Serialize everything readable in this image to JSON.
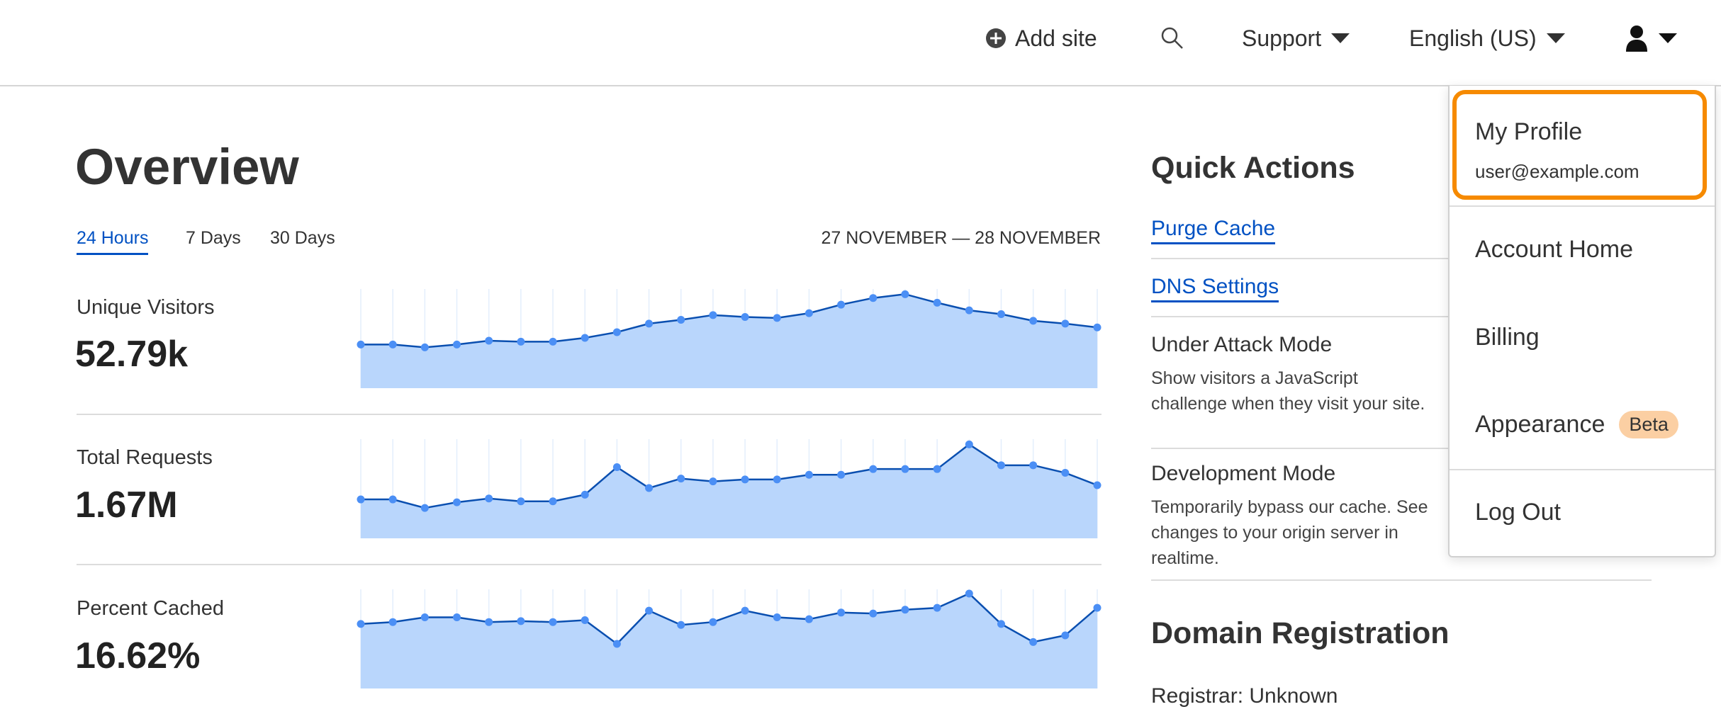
{
  "header": {
    "add_site_label": "Add site",
    "support_label": "Support",
    "language_label": "English (US)",
    "icons": [
      "plus-circle-icon",
      "search-icon",
      "caret-down-icon",
      "user-icon"
    ]
  },
  "overview": {
    "title": "Overview",
    "tabs": [
      {
        "label": "24 Hours",
        "active": true
      },
      {
        "label": "7 Days",
        "active": false
      },
      {
        "label": "30 Days",
        "active": false
      }
    ],
    "date_range": "27 NOVEMBER — 28 NOVEMBER",
    "metrics": [
      {
        "label": "Unique Visitors",
        "value": "52.79k"
      },
      {
        "label": "Total Requests",
        "value": "1.67M"
      },
      {
        "label": "Percent Cached",
        "value": "16.62%"
      }
    ]
  },
  "chart_data": [
    {
      "type": "area",
      "title": "",
      "series": [
        {
          "values": [
            46,
            46,
            43,
            46,
            50,
            49,
            49,
            53,
            59,
            68,
            72,
            77,
            75,
            74,
            79,
            88,
            95,
            99,
            90,
            82,
            78,
            71,
            68,
            64
          ]
        }
      ],
      "ylim": [
        0,
        100
      ],
      "grid": "vertical"
    },
    {
      "type": "area",
      "title": "",
      "series": [
        {
          "values": [
            41,
            41,
            32,
            38,
            42,
            39,
            39,
            46,
            75,
            53,
            63,
            60,
            62,
            62,
            67,
            67,
            73,
            73,
            73,
            99,
            77,
            77,
            69,
            56
          ]
        }
      ],
      "ylim": [
        0,
        100
      ],
      "grid": "vertical"
    },
    {
      "type": "area",
      "title": "",
      "series": [
        {
          "values": [
            68,
            70,
            75,
            75,
            70,
            71,
            70,
            72,
            47,
            82,
            67,
            70,
            82,
            75,
            73,
            80,
            79,
            83,
            85,
            100,
            68,
            49,
            56,
            85
          ]
        }
      ],
      "ylim": [
        0,
        100
      ],
      "grid": "vertical"
    }
  ],
  "quick_actions": {
    "title": "Quick Actions",
    "purge_cache": "Purge Cache",
    "dns_settings": "DNS Settings",
    "under_attack_title": "Under Attack Mode",
    "under_attack_desc": "Show visitors a JavaScript challenge when they visit your site.",
    "dev_mode_title": "Development Mode",
    "dev_mode_desc": "Temporarily bypass our cache. See changes to your origin server in realtime."
  },
  "domain_registration": {
    "title": "Domain Registration",
    "registrar": "Registrar: Unknown"
  },
  "user_menu": {
    "profile_label": "My Profile",
    "email": "user@example.com",
    "account_home": "Account Home",
    "billing": "Billing",
    "appearance": "Appearance",
    "beta_badge": "Beta",
    "log_out": "Log Out"
  },
  "colors": {
    "accent": "#0051c3",
    "highlight": "#f68a00",
    "chart_fill": "#b9d6fc",
    "chart_line": "#0a4fb0",
    "chart_dot": "#4b8ff5",
    "beta_badge": "#fbcfa3"
  }
}
